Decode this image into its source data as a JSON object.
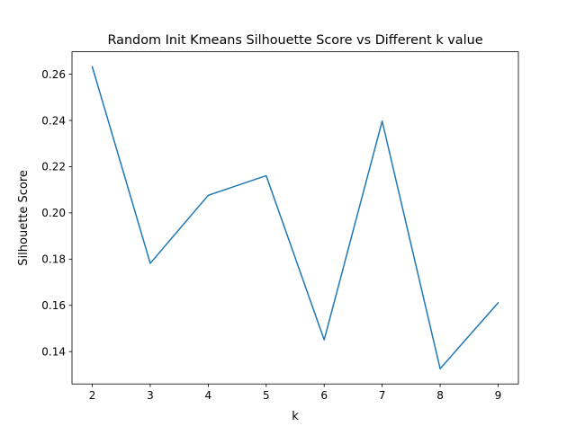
{
  "chart_data": {
    "type": "line",
    "title": "Random Init Kmeans Silhouette Score vs Different k value",
    "xlabel": "k",
    "ylabel": "Silhouette Score",
    "x": [
      2,
      3,
      4,
      5,
      6,
      7,
      8,
      9
    ],
    "series": [
      {
        "values": [
          0.2632,
          0.1782,
          0.2076,
          0.2161,
          0.1451,
          0.2397,
          0.1326,
          0.1611
        ],
        "color": "#1f77b4"
      }
    ],
    "xlim": [
      1.65,
      9.35
    ],
    "ylim": [
      0.126,
      0.2697
    ],
    "xticks": [
      2,
      3,
      4,
      5,
      6,
      7,
      8,
      9
    ],
    "xtick_labels": [
      "2",
      "3",
      "4",
      "5",
      "6",
      "7",
      "8",
      "9"
    ],
    "yticks": [
      0.14,
      0.16,
      0.18,
      0.2,
      0.22,
      0.24,
      0.26
    ],
    "ytick_labels": [
      "0.14",
      "0.16",
      "0.18",
      "0.20",
      "0.22",
      "0.24",
      "0.26"
    ],
    "grid": false,
    "legend": "none"
  }
}
